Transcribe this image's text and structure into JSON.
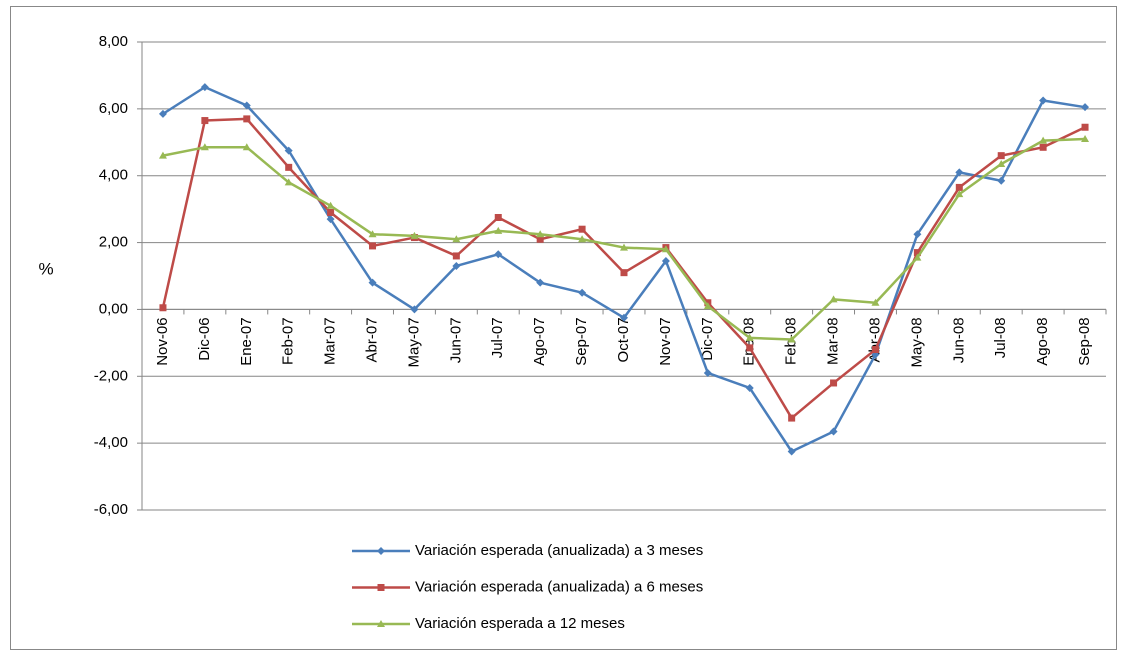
{
  "chart_data": {
    "type": "line",
    "ylabel": "%",
    "categories": [
      "Nov-06",
      "Dic-06",
      "Ene-07",
      "Feb-07",
      "Mar-07",
      "Abr-07",
      "May-07",
      "Jun-07",
      "Jul-07",
      "Ago-07",
      "Sep-07",
      "Oct-07",
      "Nov-07",
      "Dic-07",
      "Ene-08",
      "Feb-08",
      "Mar-08",
      "Abr-08",
      "May-08",
      "Jun-08",
      "Jul-08",
      "Ago-08",
      "Sep-08"
    ],
    "series": [
      {
        "name": "Variación esperada (anualizada) a 3 meses",
        "color": "#4a7ebb",
        "marker": "diamond",
        "values": [
          5.85,
          6.65,
          6.1,
          4.75,
          2.7,
          0.8,
          0.0,
          1.3,
          1.65,
          0.8,
          0.5,
          -0.25,
          1.45,
          -1.9,
          -2.35,
          -4.25,
          -3.65,
          -1.35,
          2.25,
          4.1,
          3.85,
          6.25,
          6.05
        ]
      },
      {
        "name": "Variación esperada (anualizada) a 6 meses",
        "color": "#be4b48",
        "marker": "square",
        "values": [
          0.05,
          5.65,
          5.7,
          4.25,
          2.9,
          1.9,
          2.15,
          1.6,
          2.75,
          2.1,
          2.4,
          1.1,
          1.85,
          0.2,
          -1.15,
          -3.25,
          -2.2,
          -1.2,
          1.7,
          3.65,
          4.6,
          4.85,
          5.45
        ]
      },
      {
        "name": "Variación esperada a 12 meses",
        "color": "#98b954",
        "marker": "triangle",
        "values": [
          4.6,
          4.85,
          4.85,
          3.8,
          3.1,
          2.25,
          2.2,
          2.1,
          2.35,
          2.25,
          2.1,
          1.85,
          1.8,
          0.1,
          -0.85,
          -0.9,
          0.3,
          0.2,
          1.55,
          3.45,
          4.35,
          5.05,
          5.1
        ]
      }
    ],
    "ylim": [
      -6,
      8
    ],
    "yticks": [
      {
        "value": -6,
        "label": "-6,00"
      },
      {
        "value": -4,
        "label": "-4,00"
      },
      {
        "value": -2,
        "label": "-2,00"
      },
      {
        "value": 0,
        "label": "0,00"
      },
      {
        "value": 2,
        "label": "2,00"
      },
      {
        "value": 4,
        "label": "4,00"
      },
      {
        "value": 6,
        "label": "6,00"
      },
      {
        "value": 8,
        "label": "8,00"
      }
    ],
    "grid": true,
    "legend": "bottom"
  }
}
